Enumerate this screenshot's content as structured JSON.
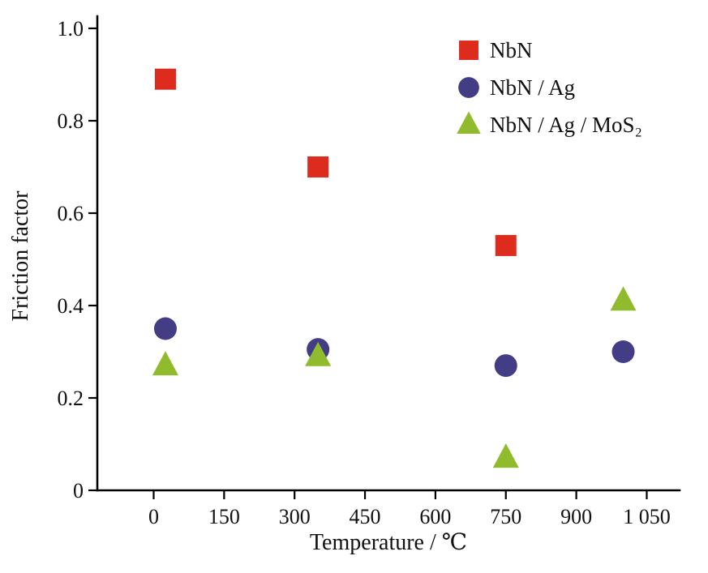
{
  "chart_data": {
    "type": "scatter",
    "title": "",
    "xlabel": "Temperature / ℃",
    "ylabel": "Friction factor",
    "xlim": [
      -120,
      1120
    ],
    "ylim": [
      0,
      1.0
    ],
    "x_ticks": [
      0,
      150,
      300,
      450,
      600,
      750,
      900,
      1050
    ],
    "x_tick_labels": [
      "0",
      "150",
      "300",
      "450",
      "600",
      "750",
      "900",
      "1 050"
    ],
    "y_ticks": [
      0,
      0.2,
      0.4,
      0.6,
      0.8,
      1.0
    ],
    "y_tick_labels": [
      "0",
      "0.2",
      "0.4",
      "0.6",
      "0.8",
      "1.0"
    ],
    "grid": false,
    "legend_position": "top-right",
    "series": [
      {
        "name": "NbN",
        "marker": "square",
        "color": "#dd2b1e",
        "x": [
          25,
          350,
          750
        ],
        "values": [
          0.89,
          0.7,
          0.53
        ]
      },
      {
        "name": "NbN / Ag",
        "marker": "circle",
        "color": "#433d85",
        "x": [
          25,
          350,
          750,
          1000
        ],
        "values": [
          0.35,
          0.305,
          0.27,
          0.3
        ]
      },
      {
        "name": "NbN / Ag / MoS₂",
        "marker": "triangle",
        "color": "#8fbb2c",
        "x": [
          25,
          350,
          750,
          1000
        ],
        "values": [
          0.27,
          0.29,
          0.07,
          0.41
        ]
      }
    ]
  }
}
